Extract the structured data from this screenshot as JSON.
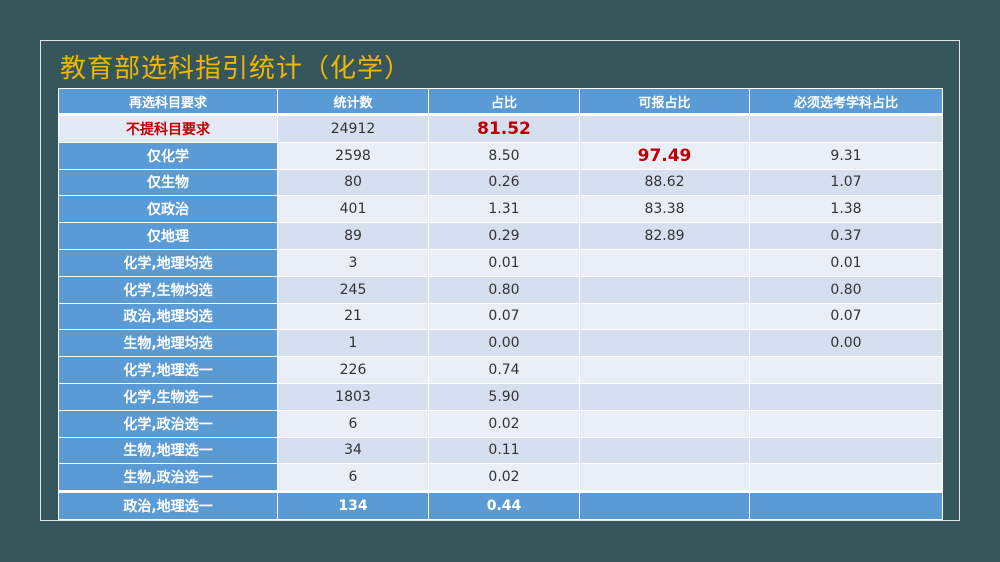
{
  "header": {
    "title": "教育部选科指引统计（化学）"
  },
  "table": {
    "columns": [
      "再选科目要求",
      "统计数",
      "占比",
      "可报占比",
      "必须选考学科占比"
    ],
    "rows": [
      {
        "requirement": "不提科目要求",
        "count": "24912",
        "share": "81.52"
      },
      {
        "requirement": "仅化学",
        "count": "2598",
        "share": "8.50",
        "reportable_share": "97.49",
        "required_share": "9.31"
      },
      {
        "requirement": "仅生物",
        "count": "80",
        "share": "0.26",
        "reportable_share": "88.62",
        "required_share": "1.07"
      },
      {
        "requirement": "仅政治",
        "count": "401",
        "share": "1.31",
        "reportable_share": "83.38",
        "required_share": "1.38"
      },
      {
        "requirement": "仅地理",
        "count": "89",
        "share": "0.29",
        "reportable_share": "82.89",
        "required_share": "0.37"
      },
      {
        "requirement": "化学,地理均选",
        "count": "3",
        "share": "0.01",
        "required_share": "0.01"
      },
      {
        "requirement": "化学,生物均选",
        "count": "245",
        "share": "0.80",
        "required_share": "0.80"
      },
      {
        "requirement": "政治,地理均选",
        "count": "21",
        "share": "0.07",
        "required_share": "0.07"
      },
      {
        "requirement": "生物,地理均选",
        "count": "1",
        "share": "0.00",
        "required_share": "0.00"
      },
      {
        "requirement": "化学,地理选一",
        "count": "226",
        "share": "0.74"
      },
      {
        "requirement": "化学,生物选一",
        "count": "1803",
        "share": "5.90"
      },
      {
        "requirement": "化学,政治选一",
        "count": "6",
        "share": "0.02"
      },
      {
        "requirement": "生物,地理选一",
        "count": "34",
        "share": "0.11"
      },
      {
        "requirement": "生物,政治选一",
        "count": "6",
        "share": "0.02"
      },
      {
        "requirement": "政治,地理选一",
        "count": "134",
        "share": "0.44"
      }
    ]
  }
}
